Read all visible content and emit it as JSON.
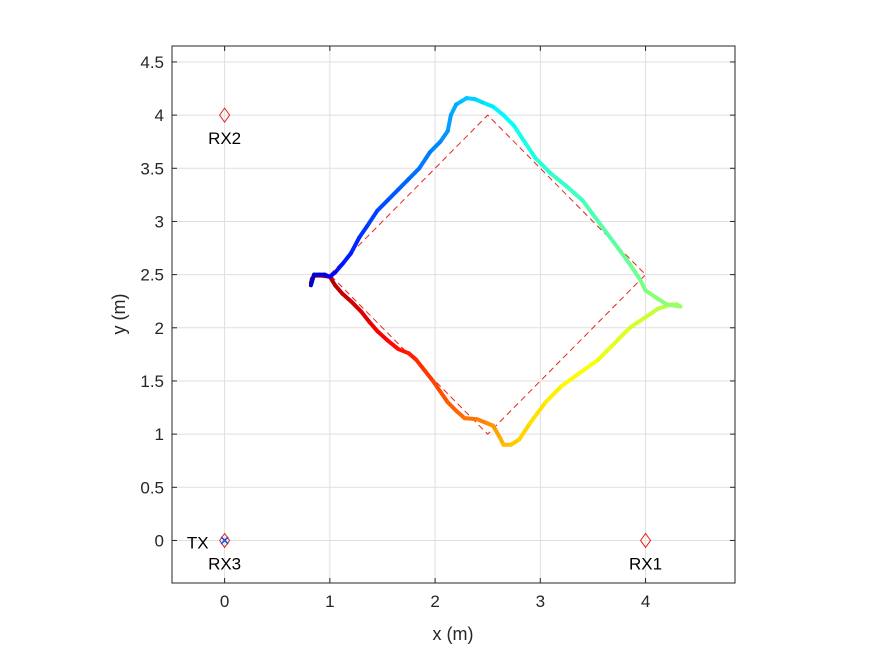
{
  "chart_data": {
    "type": "line",
    "title": "",
    "xlabel": "x (m)",
    "ylabel": "y (m)",
    "xlim": [
      -0.5,
      4.85
    ],
    "ylim": [
      -0.4,
      4.65
    ],
    "xticks": [
      0,
      1,
      2,
      3,
      4
    ],
    "yticks": [
      0,
      0.5,
      1,
      1.5,
      2,
      2.5,
      3,
      3.5,
      4,
      4.5
    ],
    "xtick_labels": [
      "0",
      "1",
      "2",
      "3",
      "4"
    ],
    "ytick_labels": [
      "0",
      "0.5",
      "1",
      "1.5",
      "2",
      "2.5",
      "3",
      "3.5",
      "4",
      "4.5"
    ],
    "grid": true,
    "colors": {
      "axis": "#262626",
      "grid": "#dfdfdf",
      "reference": "#e8231f",
      "tx_marker": "#1a4fd6"
    },
    "colormap": "jet",
    "reference_path": {
      "style": "dashed",
      "x": [
        1.0,
        2.5,
        4.0,
        2.5,
        1.0
      ],
      "y": [
        2.5,
        4.0,
        2.5,
        1.0,
        2.5
      ]
    },
    "trajectory": {
      "x": [
        0.82,
        0.83,
        0.85,
        0.92,
        1.0,
        1.05,
        1.12,
        1.2,
        1.3,
        1.38,
        1.45,
        1.55,
        1.65,
        1.75,
        1.82,
        1.9,
        1.98,
        2.05,
        2.12,
        2.2,
        2.28,
        2.4,
        2.5,
        2.55,
        2.58,
        2.62,
        2.65,
        2.72,
        2.8,
        2.9,
        3.05,
        3.2,
        3.38,
        3.55,
        3.7,
        3.85,
        4.0,
        4.12,
        4.25,
        4.3,
        4.33,
        4.2,
        4.0,
        3.95,
        3.85,
        3.7,
        3.55,
        3.4,
        3.25,
        3.1,
        2.95,
        2.85,
        2.75,
        2.65,
        2.55,
        2.45,
        2.38,
        2.3,
        2.25,
        2.2,
        2.15,
        2.12,
        2.05,
        1.95,
        1.85,
        1.75,
        1.65,
        1.55,
        1.45,
        1.35,
        1.28,
        1.2,
        1.12,
        1.05,
        1.0,
        0.95,
        0.9,
        0.85,
        0.82
      ],
      "y": [
        2.42,
        2.46,
        2.49,
        2.49,
        2.48,
        2.4,
        2.32,
        2.25,
        2.15,
        2.05,
        1.97,
        1.88,
        1.8,
        1.76,
        1.7,
        1.6,
        1.5,
        1.4,
        1.3,
        1.22,
        1.15,
        1.14,
        1.1,
        1.08,
        1.03,
        0.96,
        0.9,
        0.9,
        0.95,
        1.1,
        1.3,
        1.45,
        1.58,
        1.7,
        1.85,
        2.0,
        2.1,
        2.18,
        2.22,
        2.22,
        2.2,
        2.22,
        2.35,
        2.45,
        2.6,
        2.8,
        3.0,
        3.2,
        3.33,
        3.45,
        3.6,
        3.75,
        3.9,
        4.0,
        4.08,
        4.12,
        4.15,
        4.16,
        4.13,
        4.1,
        4.0,
        3.85,
        3.75,
        3.65,
        3.5,
        3.4,
        3.3,
        3.2,
        3.1,
        2.95,
        2.85,
        2.7,
        2.6,
        2.52,
        2.48,
        2.5,
        2.5,
        2.5,
        2.4
      ]
    },
    "markers": [
      {
        "label": "RX1",
        "x": 4,
        "y": 0,
        "symbol": "diamond"
      },
      {
        "label": "RX2",
        "x": 0,
        "y": 4,
        "symbol": "diamond"
      },
      {
        "label": "RX3",
        "x": 0,
        "y": 0,
        "symbol": "diamond"
      },
      {
        "label": "TX",
        "x": 0,
        "y": 0,
        "symbol": "cross"
      }
    ]
  }
}
